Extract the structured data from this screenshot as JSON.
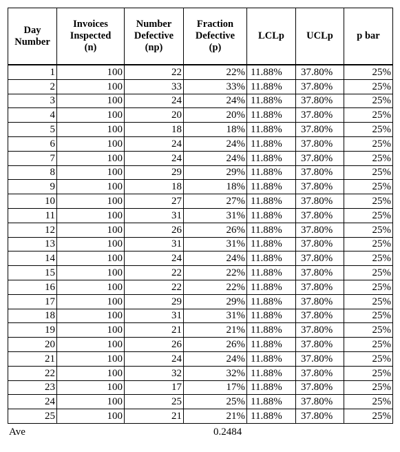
{
  "headers": [
    [
      "Day",
      "Number"
    ],
    [
      "Invoices",
      "Inspected",
      "(n)"
    ],
    [
      "Number",
      "Defective",
      "(np)"
    ],
    [
      "Fraction",
      "Defective",
      "(p)"
    ],
    [
      "LCLp"
    ],
    [
      "UCLp"
    ],
    [
      "p bar"
    ]
  ],
  "rows": [
    [
      "1",
      "100",
      "22",
      "22%",
      "11.88%",
      "37.80%",
      "25%"
    ],
    [
      "2",
      "100",
      "33",
      "33%",
      "11.88%",
      "37.80%",
      "25%"
    ],
    [
      "3",
      "100",
      "24",
      "24%",
      "11.88%",
      "37.80%",
      "25%"
    ],
    [
      "4",
      "100",
      "20",
      "20%",
      "11.88%",
      "37.80%",
      "25%"
    ],
    [
      "5",
      "100",
      "18",
      "18%",
      "11.88%",
      "37.80%",
      "25%"
    ],
    [
      "6",
      "100",
      "24",
      "24%",
      "11.88%",
      "37.80%",
      "25%"
    ],
    [
      "7",
      "100",
      "24",
      "24%",
      "11.88%",
      "37.80%",
      "25%"
    ],
    [
      "8",
      "100",
      "29",
      "29%",
      "11.88%",
      "37.80%",
      "25%"
    ],
    [
      "9",
      "100",
      "18",
      "18%",
      "11.88%",
      "37.80%",
      "25%"
    ],
    [
      "10",
      "100",
      "27",
      "27%",
      "11.88%",
      "37.80%",
      "25%"
    ],
    [
      "11",
      "100",
      "31",
      "31%",
      "11.88%",
      "37.80%",
      "25%"
    ],
    [
      "12",
      "100",
      "26",
      "26%",
      "11.88%",
      "37.80%",
      "25%"
    ],
    [
      "13",
      "100",
      "31",
      "31%",
      "11.88%",
      "37.80%",
      "25%"
    ],
    [
      "14",
      "100",
      "24",
      "24%",
      "11.88%",
      "37.80%",
      "25%"
    ],
    [
      "15",
      "100",
      "22",
      "22%",
      "11.88%",
      "37.80%",
      "25%"
    ],
    [
      "16",
      "100",
      "22",
      "22%",
      "11.88%",
      "37.80%",
      "25%"
    ],
    [
      "17",
      "100",
      "29",
      "29%",
      "11.88%",
      "37.80%",
      "25%"
    ],
    [
      "18",
      "100",
      "31",
      "31%",
      "11.88%",
      "37.80%",
      "25%"
    ],
    [
      "19",
      "100",
      "21",
      "21%",
      "11.88%",
      "37.80%",
      "25%"
    ],
    [
      "20",
      "100",
      "26",
      "26%",
      "11.88%",
      "37.80%",
      "25%"
    ],
    [
      "21",
      "100",
      "24",
      "24%",
      "11.88%",
      "37.80%",
      "25%"
    ],
    [
      "22",
      "100",
      "32",
      "32%",
      "11.88%",
      "37.80%",
      "25%"
    ],
    [
      "23",
      "100",
      "17",
      "17%",
      "11.88%",
      "37.80%",
      "25%"
    ],
    [
      "24",
      "100",
      "25",
      "25%",
      "11.88%",
      "37.80%",
      "25%"
    ],
    [
      "25",
      "100",
      "21",
      "21%",
      "11.88%",
      "37.80%",
      "25%"
    ]
  ],
  "footer": {
    "label": "Ave",
    "value": "0.2484"
  }
}
